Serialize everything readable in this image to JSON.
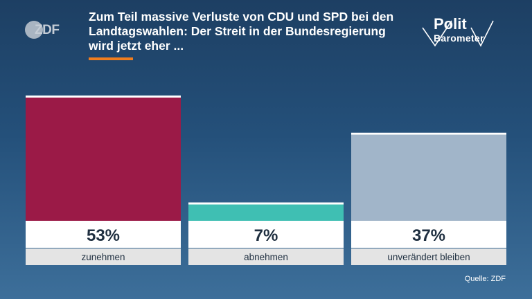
{
  "header": {
    "title": "Zum Teil massive Verluste von CDU und SPD bei den Landtagswahlen: Der Streit in der Bundesregierung wird jetzt eher ...",
    "broadcaster_logo": "ZDF",
    "programme_logo_line1": "Polit",
    "programme_logo_line2": "Barometer"
  },
  "footer": {
    "source": "Quelle: ZDF"
  },
  "colors": {
    "accent": "#f07d1e",
    "bar_zunehmen": "#9b1a47",
    "bar_abnehmen": "#3fbfb3",
    "bar_unveraendert": "#a1b5c9"
  },
  "chart_data": {
    "type": "bar",
    "categories": [
      "zunehmen",
      "abnehmen",
      "unverändert bleiben"
    ],
    "values": [
      53,
      7,
      37
    ],
    "value_labels": [
      "53%",
      "7%",
      "37%"
    ],
    "ylim": [
      0,
      60
    ],
    "grid": false,
    "legend": "none"
  }
}
